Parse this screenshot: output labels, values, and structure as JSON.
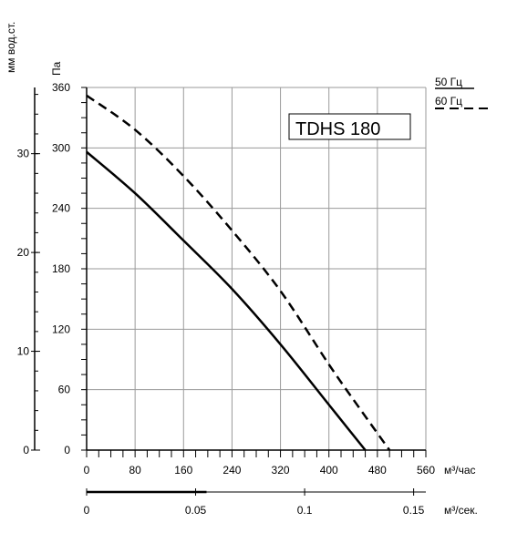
{
  "chart_data": {
    "type": "line",
    "title": "TDHS 180",
    "xlabel": "м³/час",
    "xlabel_secondary": "м³/сек.",
    "ylabel": "Па",
    "ylabel_secondary": "мм вод.ст.",
    "xlim": [
      0,
      560
    ],
    "ylim": [
      0,
      360
    ],
    "x_ticks": [
      0,
      80,
      160,
      240,
      320,
      400,
      480,
      560
    ],
    "y_ticks": [
      0,
      60,
      120,
      180,
      240,
      300,
      360
    ],
    "x2_ticks": [
      "0",
      "0.05",
      "0.1",
      "0.15"
    ],
    "x2_tick_values": [
      0,
      0.05,
      0.1,
      0.15
    ],
    "x2_lim": [
      0,
      0.1556
    ],
    "y2_ticks": [
      "0",
      "10",
      "20",
      "30"
    ],
    "y2_tick_values": [
      0,
      10,
      20,
      30
    ],
    "y2_lim": [
      0,
      36.7
    ],
    "grid": true,
    "legend_position": "top-right",
    "series": [
      {
        "name": "50 Гц",
        "style": "solid",
        "color": "#000000",
        "x": [
          0,
          80,
          160,
          240,
          320,
          400,
          460
        ],
        "y": [
          296,
          255,
          208,
          160,
          105,
          45,
          0
        ]
      },
      {
        "name": "60 Гц",
        "style": "dashed",
        "color": "#000000",
        "x": [
          0,
          80,
          160,
          240,
          320,
          400,
          450,
          500
        ],
        "y": [
          352,
          318,
          272,
          218,
          158,
          85,
          42,
          0
        ]
      }
    ]
  }
}
